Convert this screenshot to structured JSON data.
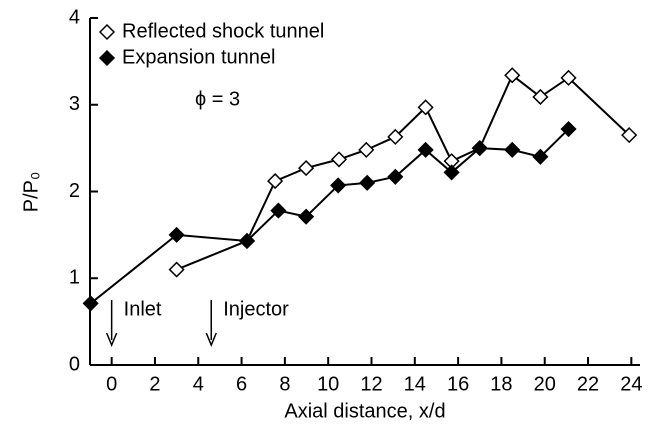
{
  "chart_data": {
    "type": "line",
    "xlabel": "Axial distance, x/d",
    "ylabel": "P/P₀",
    "xlim": [
      -1,
      24.4
    ],
    "ylim": [
      0,
      4
    ],
    "xticks": [
      0,
      2,
      4,
      6,
      8,
      10,
      12,
      14,
      16,
      18,
      20,
      22,
      24
    ],
    "yticks": [
      0,
      1,
      2,
      3,
      4
    ],
    "legend": "upper left",
    "series": [
      {
        "name": "Reflected shock tunnel",
        "color": "#000000",
        "marker": "open-diamond",
        "x": [
          3.0,
          6.25,
          7.55,
          8.98,
          10.5,
          11.76,
          13.1,
          14.5,
          15.7,
          17.0,
          18.5,
          19.8,
          21.1,
          23.9
        ],
        "values": [
          1.1,
          1.43,
          2.12,
          2.27,
          2.37,
          2.48,
          2.63,
          2.97,
          2.35,
          2.5,
          3.34,
          3.09,
          3.31,
          2.65
        ]
      },
      {
        "name": "Expansion tunnel",
        "color": "#000000",
        "marker": "filled-diamond",
        "x": [
          -0.97,
          3.0,
          6.25,
          7.7,
          8.98,
          10.46,
          11.8,
          13.1,
          14.5,
          15.7,
          17.0,
          18.5,
          19.8,
          21.1
        ],
        "values": [
          0.71,
          1.5,
          1.43,
          1.78,
          1.71,
          2.07,
          2.1,
          2.17,
          2.48,
          2.22,
          2.5,
          2.48,
          2.4,
          2.72
        ]
      }
    ],
    "annotations": [
      {
        "text": "ϕ = 3"
      },
      {
        "text": "Inlet",
        "x": 0
      },
      {
        "text": "Injector",
        "x": 4.6
      }
    ]
  }
}
